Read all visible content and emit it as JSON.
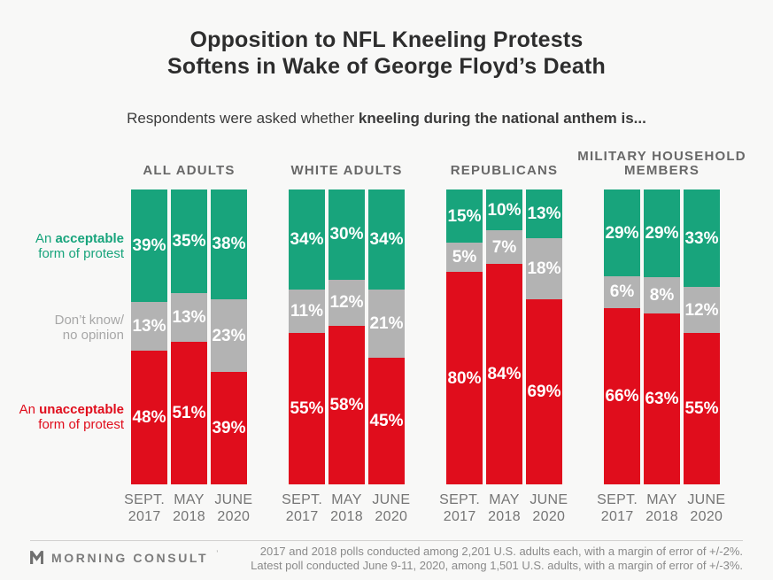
{
  "title": {
    "line1": "Opposition to NFL Kneeling Protests",
    "line2": "Softens in Wake of George Floyd’s Death"
  },
  "subtitle": {
    "normal": "Respondents were asked whether ",
    "bold": "kneeling during the national anthem is..."
  },
  "side_labels": {
    "acceptable": {
      "pre": "An ",
      "bold": "acceptable",
      "line2": "form of protest"
    },
    "dont_know": {
      "line1": "Don’t know/",
      "line2": "no opinion"
    },
    "unacceptable": {
      "pre": "An ",
      "bold": "unacceptable",
      "line2": "form of protest"
    }
  },
  "colors": {
    "acceptable": "#18A47C",
    "dont_know": "#B3B3B3",
    "unacceptable": "#E00D1C",
    "background": "#F8F8F7",
    "side_dont_know_text": "#a7a7a7"
  },
  "chart_data": {
    "type": "bar",
    "variant": "stacked-percent",
    "unit": "%",
    "ylim": [
      0,
      100
    ],
    "grid": false,
    "legend_position": "left",
    "categories": [
      [
        "SEPT.",
        "2017"
      ],
      [
        "MAY",
        "2018"
      ],
      [
        "JUNE",
        "2020"
      ]
    ],
    "series_order": [
      "acceptable",
      "dont_know",
      "unacceptable"
    ],
    "series_labels": {
      "acceptable": "An acceptable form of protest",
      "dont_know": "Don’t know/no opinion",
      "unacceptable": "An unacceptable form of protest"
    },
    "groups": [
      {
        "title_lines": [
          "ALL ADULTS"
        ],
        "bars": [
          {
            "acceptable": 39,
            "dont_know": 13,
            "unacceptable": 48
          },
          {
            "acceptable": 35,
            "dont_know": 13,
            "unacceptable": 51
          },
          {
            "acceptable": 38,
            "dont_know": 23,
            "unacceptable": 39
          }
        ]
      },
      {
        "title_lines": [
          "WHITE ADULTS"
        ],
        "bars": [
          {
            "acceptable": 34,
            "dont_know": 11,
            "unacceptable": 55
          },
          {
            "acceptable": 30,
            "dont_know": 12,
            "unacceptable": 58
          },
          {
            "acceptable": 34,
            "dont_know": 21,
            "unacceptable": 45
          }
        ]
      },
      {
        "title_lines": [
          "REPUBLICANS"
        ],
        "bars": [
          {
            "acceptable": 15,
            "dont_know": 5,
            "unacceptable": 80
          },
          {
            "acceptable": 10,
            "dont_know": 7,
            "unacceptable": 84
          },
          {
            "acceptable": 13,
            "dont_know": 18,
            "unacceptable": 69
          }
        ]
      },
      {
        "title_lines": [
          "MILITARY HOUSEHOLD",
          "MEMBERS"
        ],
        "bars": [
          {
            "acceptable": 29,
            "dont_know": 6,
            "unacceptable": 66
          },
          {
            "acceptable": 29,
            "dont_know": 8,
            "unacceptable": 63
          },
          {
            "acceptable": 33,
            "dont_know": 12,
            "unacceptable": 55
          }
        ]
      }
    ]
  },
  "footer": {
    "brand": "MORNING CONSULT",
    "brand_mark": "’",
    "note_line1": "2017 and 2018 polls conducted among 2,201 U.S. adults each, with a margin of error of +/-2%.",
    "note_line2": "Latest poll conducted June 9-11, 2020, among 1,501 U.S. adults, with a margin of error of +/-3%."
  }
}
